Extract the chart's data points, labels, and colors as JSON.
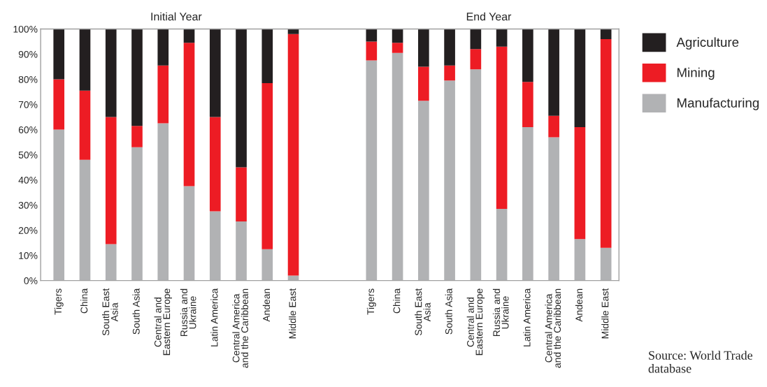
{
  "chart_data": {
    "type": "bar",
    "stacked": true,
    "categories": [
      "Tigers",
      "China",
      "South East\nAsia",
      "South Asia",
      "Central and\nEastern Europe",
      "Russia and\nUkraine",
      "Latin America",
      "Central America\nand the Caribbean",
      "Andean",
      "Middle East",
      null,
      null,
      "Tigers",
      "China",
      "South East\nAsia",
      "South Asia",
      "Central and\nEastern Europe",
      "Russia and\nUkraine",
      "Latin America",
      "Central America\nand the Caribbean",
      "Andean",
      "Middle East"
    ],
    "series": [
      {
        "name": "Manufacturing",
        "color": "#b1b2b4",
        "values": [
          60,
          48,
          14.5,
          53,
          62.5,
          37.5,
          27.5,
          23.5,
          12.5,
          2,
          null,
          null,
          87.5,
          90.5,
          71.5,
          79.5,
          84,
          28.5,
          61,
          57,
          16.5,
          13
        ]
      },
      {
        "name": "Mining",
        "color": "#ed1c24",
        "values": [
          20,
          27.5,
          50.5,
          8.5,
          23,
          57,
          37.5,
          21.5,
          66,
          96,
          null,
          null,
          7.5,
          4,
          13.5,
          6,
          8,
          64.5,
          18,
          8.5,
          44.5,
          83
        ]
      },
      {
        "name": "Agriculture",
        "color": "#231f20",
        "values": [
          20,
          24.5,
          35,
          38.5,
          14.5,
          5.5,
          35,
          55,
          21.5,
          2,
          null,
          null,
          5,
          5.5,
          15,
          14.5,
          8,
          7,
          21,
          34.5,
          39,
          4
        ]
      }
    ],
    "ylim": [
      0,
      100
    ],
    "yticks": [
      {
        "value": 0,
        "label": "0%"
      },
      {
        "value": 10,
        "label": "10%"
      },
      {
        "value": 20,
        "label": "20%"
      },
      {
        "value": 30,
        "label": "30%"
      },
      {
        "value": 40,
        "label": "40%"
      },
      {
        "value": 50,
        "label": "50%"
      },
      {
        "value": 60,
        "label": "60%"
      },
      {
        "value": 70,
        "label": "70%"
      },
      {
        "value": 80,
        "label": "80%"
      },
      {
        "value": 90,
        "label": "90%"
      },
      {
        "value": 100,
        "label": "100%"
      }
    ],
    "grid": false,
    "legend": "right",
    "annotations": [
      "Initial Year",
      "End Year",
      "Source: World Trade database"
    ]
  }
}
